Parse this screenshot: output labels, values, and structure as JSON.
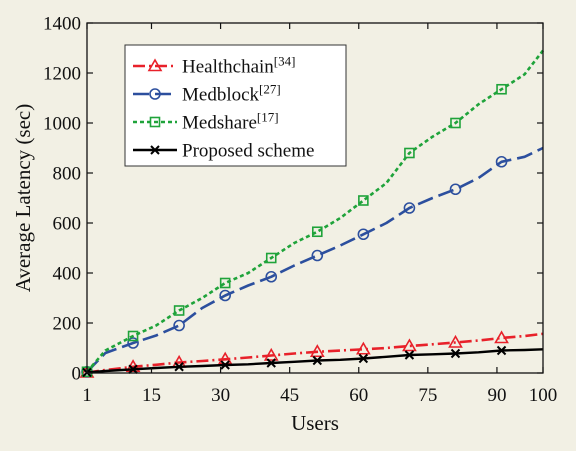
{
  "chart_data": {
    "type": "line",
    "xlabel": "Users",
    "ylabel": "Average Latency (sec)",
    "xlim": [
      1,
      100
    ],
    "ylim": [
      0,
      1400
    ],
    "xticks": [
      1,
      15,
      30,
      45,
      60,
      75,
      90,
      100
    ],
    "yticks": [
      0,
      200,
      400,
      600,
      800,
      1000,
      1200,
      1400
    ],
    "grid": false,
    "legend_position": "top-left",
    "series": [
      {
        "name": "Healthchain",
        "ref": "[34]",
        "color": "#e8212a",
        "line_style": "dash-dot",
        "marker": "triangle",
        "x": [
          1,
          5,
          11,
          16,
          21,
          26,
          31,
          36,
          41,
          46,
          51,
          56,
          61,
          66,
          71,
          76,
          81,
          86,
          91,
          96,
          100
        ],
        "y": [
          2,
          12,
          25,
          33,
          42,
          48,
          55,
          62,
          70,
          78,
          85,
          90,
          95,
          100,
          108,
          115,
          122,
          130,
          140,
          148,
          157
        ],
        "marker_x": [
          1,
          11,
          21,
          31,
          41,
          51,
          61,
          71,
          81,
          91
        ],
        "marker_y": [
          2,
          25,
          42,
          55,
          70,
          85,
          95,
          108,
          122,
          140
        ]
      },
      {
        "name": "Medblock",
        "ref": "[27]",
        "color": "#2c4f9e",
        "line_style": "long-dash",
        "marker": "circle",
        "x": [
          1,
          5,
          11,
          16,
          21,
          26,
          31,
          36,
          41,
          46,
          51,
          56,
          61,
          66,
          71,
          76,
          81,
          86,
          91,
          96,
          100
        ],
        "y": [
          5,
          80,
          120,
          150,
          190,
          260,
          310,
          350,
          385,
          430,
          470,
          510,
          555,
          600,
          660,
          700,
          735,
          780,
          845,
          865,
          900
        ],
        "marker_x": [
          1,
          11,
          21,
          31,
          41,
          51,
          61,
          71,
          81,
          91
        ],
        "marker_y": [
          5,
          120,
          190,
          310,
          385,
          470,
          555,
          660,
          735,
          845
        ]
      },
      {
        "name": "Medshare",
        "ref": "[17]",
        "color": "#1fa33a",
        "line_style": "dotted",
        "marker": "square",
        "x": [
          1,
          5,
          11,
          16,
          21,
          26,
          31,
          36,
          41,
          46,
          51,
          56,
          61,
          66,
          71,
          76,
          81,
          86,
          91,
          96,
          100
        ],
        "y": [
          5,
          90,
          148,
          190,
          250,
          300,
          360,
          400,
          460,
          520,
          565,
          620,
          690,
          760,
          880,
          945,
          1000,
          1075,
          1135,
          1195,
          1290
        ],
        "marker_x": [
          1,
          11,
          21,
          31,
          41,
          51,
          61,
          71,
          81,
          91
        ],
        "marker_y": [
          5,
          148,
          250,
          360,
          460,
          565,
          690,
          880,
          1000,
          1135
        ]
      },
      {
        "name": "Proposed scheme",
        "ref": "",
        "color": "#000000",
        "line_style": "solid",
        "marker": "x",
        "x": [
          1,
          5,
          11,
          16,
          21,
          26,
          31,
          36,
          41,
          46,
          51,
          56,
          61,
          66,
          71,
          76,
          81,
          86,
          91,
          96,
          100
        ],
        "y": [
          2,
          8,
          15,
          20,
          25,
          28,
          32,
          35,
          40,
          45,
          50,
          53,
          58,
          65,
          72,
          75,
          78,
          83,
          90,
          92,
          95
        ],
        "marker_x": [
          1,
          11,
          21,
          31,
          41,
          51,
          61,
          71,
          81,
          91
        ],
        "marker_y": [
          2,
          15,
          25,
          32,
          40,
          50,
          58,
          72,
          78,
          90
        ]
      }
    ]
  }
}
